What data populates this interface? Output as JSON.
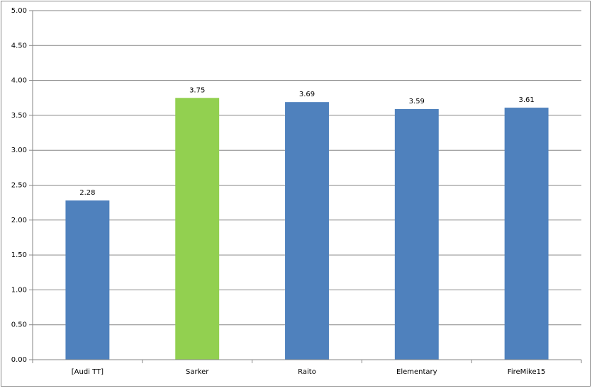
{
  "chart_data": {
    "type": "bar",
    "categories": [
      "[Audi TT]",
      "Sarker",
      "Raito",
      "Elementary",
      "FireMike15"
    ],
    "values": [
      2.28,
      3.75,
      3.69,
      3.59,
      3.61
    ],
    "colors": [
      "#4f81bd",
      "#92d050",
      "#4f81bd",
      "#4f81bd",
      "#4f81bd"
    ],
    "ylim": [
      0,
      5
    ],
    "yticks": [
      {
        "value": 0,
        "label": "0.00"
      },
      {
        "value": 0.5,
        "label": "0.50"
      },
      {
        "value": 1,
        "label": "1.00"
      },
      {
        "value": 1.5,
        "label": "1.50"
      },
      {
        "value": 2,
        "label": "2.00"
      },
      {
        "value": 2.5,
        "label": "2.50"
      },
      {
        "value": 3,
        "label": "3.00"
      },
      {
        "value": 3.5,
        "label": "3.50"
      },
      {
        "value": 4,
        "label": "4.00"
      },
      {
        "value": 4.5,
        "label": "4.50"
      },
      {
        "value": 5,
        "label": "5.00"
      }
    ],
    "grid": true
  }
}
